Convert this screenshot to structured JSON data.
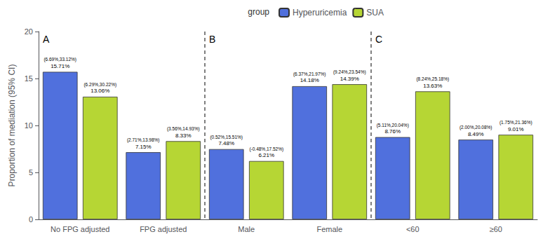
{
  "chart_data": {
    "type": "bar",
    "categories": [
      "No FPG adjusted",
      "FPG adjusted",
      "Male",
      "Female",
      "<60",
      "≥60"
    ],
    "series": [
      {
        "name": "Hyperuricemia",
        "values": [
          15.71,
          7.15,
          7.48,
          14.18,
          8.76,
          8.49
        ],
        "value_labels": [
          "15.71%",
          "7.15%",
          "7.48%",
          "14.18%",
          "8.76%",
          "8.49%"
        ],
        "annotations": [
          "(6.69%,33.12%)",
          "(2.71%,13.98%)",
          "(0.52%,15.51%)",
          "(6.37%,21.97%)",
          "(5.11%,20.04%)",
          "(2.00%,20.08%)"
        ]
      },
      {
        "name": "SUA",
        "values": [
          13.06,
          8.33,
          6.21,
          14.39,
          13.63,
          9.01
        ],
        "value_labels": [
          "13.06%",
          "8.33%",
          "6.21%",
          "14.39%",
          "13.63%",
          "9.01%"
        ],
        "annotations": [
          "(6.29%,30.22%)",
          "(3.56%,14.93%)",
          "(-0.48%,17.52%)",
          "(9.24%,23.54%)",
          "(8.24%,25.18%)",
          "(1.75%,21.36%)"
        ]
      }
    ],
    "sections": [
      {
        "label": "A",
        "categories": [
          "No FPG adjusted",
          "FPG adjusted"
        ]
      },
      {
        "label": "B",
        "categories": [
          "Male",
          "Female"
        ]
      },
      {
        "label": "C",
        "categories": [
          "<60",
          "≥60"
        ]
      }
    ],
    "y_label": "Proportion of mediation (95% CI)",
    "legend_title": "group",
    "legend": "top",
    "ylim": [
      0,
      20
    ],
    "yticks": [
      0,
      5,
      10,
      15,
      20
    ],
    "grid": false,
    "data_labels": true
  }
}
